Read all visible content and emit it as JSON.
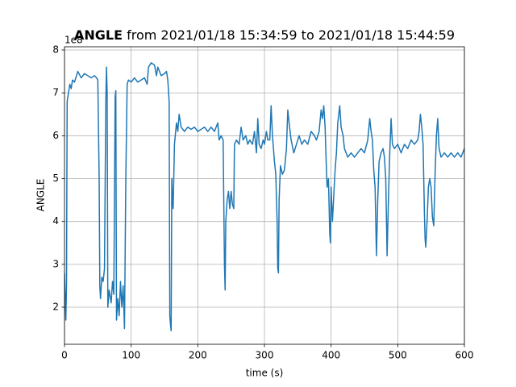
{
  "chart_data": {
    "type": "line",
    "title": {
      "name": "ANGLE",
      "range": "from 2021/01/18 15:34:59 to 2021/01/18 15:44:59"
    },
    "x_label": "time (s)",
    "y_label": "ANGLE",
    "y_offset_label": "1e8",
    "color": "#1f77b4",
    "grid": true,
    "xlim": [
      0,
      600
    ],
    "xticks": [
      0,
      100,
      200,
      300,
      400,
      500,
      600
    ],
    "ylim": [
      1.135,
      8.075
    ],
    "yticks": [
      2,
      3,
      4,
      5,
      6,
      7,
      8
    ],
    "x": [
      0,
      2,
      3,
      4,
      6,
      8,
      10,
      12,
      15,
      20,
      25,
      30,
      35,
      40,
      45,
      48,
      50,
      52,
      53,
      54,
      56,
      58,
      60,
      62,
      63,
      64,
      65,
      67,
      70,
      72,
      74,
      76,
      77,
      78,
      80,
      82,
      84,
      86,
      88,
      90,
      92,
      94,
      96,
      100,
      105,
      110,
      115,
      120,
      124,
      126,
      130,
      135,
      138,
      140,
      145,
      150,
      153,
      155,
      157,
      158,
      159,
      160,
      161,
      162,
      163,
      165,
      168,
      170,
      172,
      175,
      180,
      185,
      190,
      195,
      200,
      205,
      210,
      215,
      220,
      225,
      230,
      232,
      235,
      238,
      240,
      241,
      242,
      244,
      246,
      248,
      250,
      252,
      254,
      255,
      258,
      262,
      265,
      268,
      272,
      275,
      278,
      282,
      285,
      288,
      290,
      292,
      295,
      298,
      300,
      303,
      305,
      308,
      310,
      312,
      315,
      317,
      319,
      320,
      321,
      322,
      324,
      327,
      330,
      333,
      335,
      337,
      340,
      344,
      348,
      352,
      356,
      360,
      365,
      370,
      375,
      378,
      382,
      385,
      387,
      389,
      391,
      393,
      394,
      396,
      398,
      399,
      400,
      402,
      404,
      406,
      408,
      410,
      413,
      415,
      418,
      420,
      425,
      430,
      435,
      440,
      445,
      450,
      455,
      458,
      460,
      462,
      464,
      466,
      468,
      470,
      472,
      475,
      478,
      480,
      482,
      484,
      486,
      488,
      490,
      492,
      495,
      500,
      505,
      510,
      515,
      520,
      525,
      530,
      532,
      534,
      536,
      538,
      540,
      541,
      542,
      544,
      546,
      548,
      550,
      552,
      554,
      556,
      558,
      560,
      562,
      565,
      570,
      575,
      580,
      585,
      590,
      595,
      600
    ],
    "values": [
      2.8,
      1.7,
      2.5,
      6.8,
      7.0,
      7.2,
      7.1,
      7.3,
      7.25,
      7.5,
      7.35,
      7.45,
      7.4,
      7.35,
      7.4,
      7.35,
      7.3,
      5.0,
      2.5,
      2.2,
      2.7,
      2.6,
      2.9,
      6.8,
      7.6,
      7.0,
      2.0,
      2.4,
      2.1,
      2.6,
      2.3,
      6.9,
      7.05,
      1.7,
      2.2,
      1.8,
      2.6,
      2.0,
      2.5,
      1.5,
      5.0,
      7.2,
      7.3,
      7.25,
      7.35,
      7.25,
      7.3,
      7.35,
      7.2,
      7.6,
      7.7,
      7.65,
      7.4,
      7.6,
      7.4,
      7.45,
      7.5,
      7.3,
      6.8,
      1.8,
      1.6,
      1.45,
      5.0,
      4.5,
      4.3,
      5.8,
      6.3,
      6.1,
      6.5,
      6.2,
      6.1,
      6.2,
      6.15,
      6.2,
      6.1,
      6.15,
      6.2,
      6.1,
      6.2,
      6.1,
      6.3,
      5.9,
      6.0,
      5.9,
      3.0,
      2.4,
      4.0,
      4.5,
      4.7,
      4.3,
      4.7,
      4.4,
      4.3,
      5.8,
      5.9,
      5.8,
      6.2,
      5.9,
      6.0,
      5.8,
      5.9,
      5.8,
      6.1,
      5.6,
      6.4,
      5.8,
      5.7,
      5.9,
      5.8,
      6.1,
      5.9,
      5.9,
      6.7,
      6.0,
      5.4,
      5.1,
      4.0,
      2.9,
      2.8,
      4.5,
      5.3,
      5.1,
      5.2,
      5.7,
      6.6,
      6.3,
      5.9,
      5.6,
      5.8,
      6.0,
      5.8,
      5.9,
      5.8,
      6.1,
      6.0,
      5.9,
      6.1,
      6.6,
      6.4,
      6.7,
      6.2,
      5.2,
      4.8,
      5.0,
      3.7,
      3.5,
      4.8,
      4.0,
      4.6,
      5.2,
      5.6,
      6.3,
      6.7,
      6.2,
      6.0,
      5.7,
      5.5,
      5.6,
      5.5,
      5.6,
      5.7,
      5.6,
      5.9,
      6.4,
      6.1,
      5.9,
      5.2,
      4.8,
      3.2,
      4.5,
      5.4,
      5.6,
      5.7,
      5.5,
      5.0,
      3.2,
      4.5,
      5.6,
      6.4,
      5.8,
      5.7,
      5.8,
      5.6,
      5.8,
      5.7,
      5.9,
      5.8,
      5.9,
      6.1,
      6.5,
      6.2,
      5.8,
      4.2,
      3.6,
      3.4,
      4.0,
      4.8,
      5.0,
      4.8,
      4.1,
      3.9,
      5.1,
      6.0,
      6.4,
      5.7,
      5.5,
      5.6,
      5.5,
      5.6,
      5.5,
      5.6,
      5.5,
      5.7
    ]
  }
}
